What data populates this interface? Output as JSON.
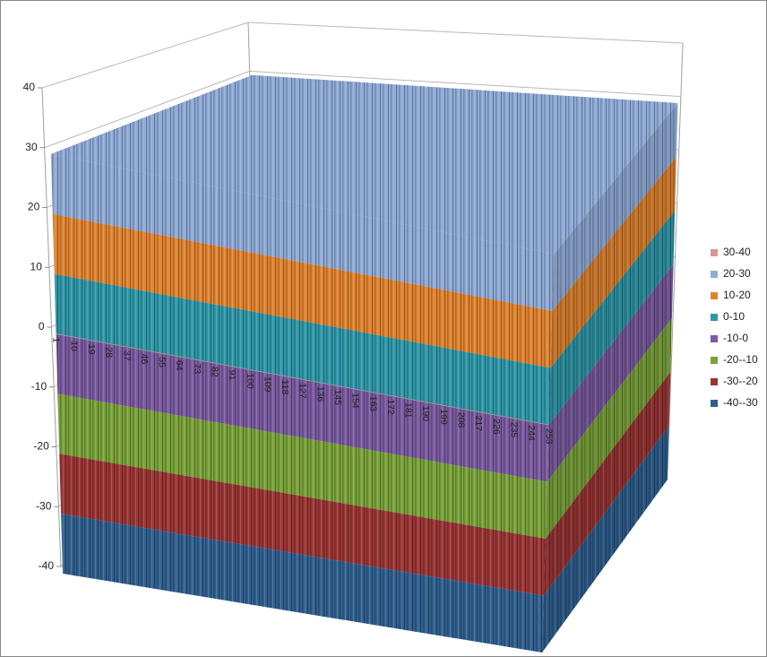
{
  "chart_data": {
    "type": "surface",
    "zlim": [
      -40,
      40
    ],
    "zticks": [
      -40,
      -30,
      -20,
      -10,
      0,
      10,
      20,
      30,
      40
    ],
    "categories": [
      "1",
      "10",
      "19",
      "28",
      "37",
      "46",
      "55",
      "64",
      "73",
      "82",
      "91",
      "100",
      "109",
      "118",
      "127",
      "136",
      "145",
      "154",
      "163",
      "172",
      "181",
      "190",
      "199",
      "208",
      "217",
      "226",
      "235",
      "244",
      "253"
    ],
    "top_level": 30,
    "grid": true,
    "legend": "right",
    "bands": [
      {
        "name": "30-40",
        "color": "#d99694",
        "range": [
          30,
          40
        ]
      },
      {
        "name": "20-30",
        "color": "#8faad6",
        "range": [
          20,
          30
        ]
      },
      {
        "name": "10-20",
        "color": "#e0832f",
        "range": [
          10,
          20
        ]
      },
      {
        "name": "0-10",
        "color": "#2f97a8",
        "range": [
          0,
          10
        ]
      },
      {
        "name": "-10-0",
        "color": "#7a5aa0",
        "range": [
          -10,
          0
        ]
      },
      {
        "name": "-20--10",
        "color": "#79a23a",
        "range": [
          -20,
          -10
        ]
      },
      {
        "name": "-30--20",
        "color": "#9a3535",
        "range": [
          -30,
          -20
        ]
      },
      {
        "name": "-40--30",
        "color": "#2f5f8f",
        "range": [
          -40,
          -30
        ]
      }
    ]
  }
}
